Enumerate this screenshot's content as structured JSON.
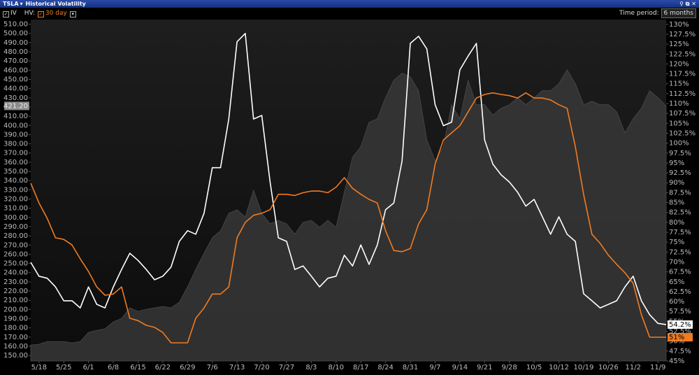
{
  "header": {
    "symbol": "TSLA",
    "title": "Historical Volatility"
  },
  "controls": {
    "hv_label": "HV:",
    "time_period_label": "Time period:",
    "time_period": "6 months"
  },
  "chart_data": {
    "type": "line",
    "categories": [
      null,
      "5/18",
      null,
      null,
      "5/25",
      null,
      null,
      "6/1",
      null,
      null,
      "6/8",
      null,
      null,
      "6/15",
      null,
      null,
      "6/22",
      null,
      null,
      "6/29",
      null,
      null,
      "7/6",
      null,
      null,
      "7/13",
      null,
      null,
      "7/20",
      null,
      null,
      "7/27",
      null,
      null,
      "8/3",
      null,
      null,
      "8/10",
      null,
      null,
      "8/17",
      null,
      null,
      "8/24",
      null,
      null,
      "8/31",
      null,
      null,
      "9/7",
      null,
      null,
      "9/14",
      null,
      null,
      "9/21",
      null,
      null,
      "9/28",
      null,
      null,
      "10/5",
      null,
      null,
      "10/12",
      null,
      null,
      "10/19",
      null,
      null,
      "10/26",
      null,
      null,
      "11/2",
      null,
      null,
      "11/9",
      null
    ],
    "ylim": [
      144,
      515
    ],
    "yticks": [
      {
        "value": 150,
        "label": "150.00"
      },
      {
        "value": 160,
        "label": "160.00"
      },
      {
        "value": 170,
        "label": "170.00"
      },
      {
        "value": 180,
        "label": "180.00"
      },
      {
        "value": 190,
        "label": "190.00"
      },
      {
        "value": 200,
        "label": "200.00"
      },
      {
        "value": 210,
        "label": "210.00"
      },
      {
        "value": 220,
        "label": "220.00"
      },
      {
        "value": 230,
        "label": "230.00"
      },
      {
        "value": 240,
        "label": "240.00"
      },
      {
        "value": 250,
        "label": "250.00"
      },
      {
        "value": 260,
        "label": "260.00"
      },
      {
        "value": 270,
        "label": "270.00"
      },
      {
        "value": 280,
        "label": "280.00"
      },
      {
        "value": 290,
        "label": "290.00"
      },
      {
        "value": 300,
        "label": "300.00"
      },
      {
        "value": 310,
        "label": "310.00"
      },
      {
        "value": 320,
        "label": "320.00"
      },
      {
        "value": 330,
        "label": "330.00"
      },
      {
        "value": 340,
        "label": "340.00"
      },
      {
        "value": 350,
        "label": "350.00"
      },
      {
        "value": 360,
        "label": "360.00"
      },
      {
        "value": 370,
        "label": "370.00"
      },
      {
        "value": 380,
        "label": "380.00"
      },
      {
        "value": 390,
        "label": "390.00"
      },
      {
        "value": 400,
        "label": "400.00"
      },
      {
        "value": 410,
        "label": "410.00"
      },
      {
        "value": 420,
        "label": "420.00"
      },
      {
        "value": 430,
        "label": "430.00"
      },
      {
        "value": 440,
        "label": "440.00"
      },
      {
        "value": 450,
        "label": "450.00"
      },
      {
        "value": 460,
        "label": "460.00"
      },
      {
        "value": 470,
        "label": "470.00"
      },
      {
        "value": 480,
        "label": "480.00"
      },
      {
        "value": 490,
        "label": "490.00"
      },
      {
        "value": 500,
        "label": "500.00"
      },
      {
        "value": 510,
        "label": "510.00"
      }
    ],
    "y2lim": [
      45,
      131.2
    ],
    "y2ticks": [
      {
        "value": 45,
        "label": "45%"
      },
      {
        "value": 47.5,
        "label": "47.5%"
      },
      {
        "value": 50,
        "label": "50%"
      },
      {
        "value": 52.5,
        "label": "52.5%"
      },
      {
        "value": 55,
        "label": "55%"
      },
      {
        "value": 57.5,
        "label": "57.5%"
      },
      {
        "value": 60,
        "label": "60%"
      },
      {
        "value": 62.5,
        "label": "62.5%"
      },
      {
        "value": 65,
        "label": "65%"
      },
      {
        "value": 67.5,
        "label": "67.5%"
      },
      {
        "value": 70,
        "label": "70%"
      },
      {
        "value": 72.5,
        "label": "72.5%"
      },
      {
        "value": 75,
        "label": "75%"
      },
      {
        "value": 77.5,
        "label": "77.5%"
      },
      {
        "value": 80,
        "label": "80%"
      },
      {
        "value": 82.5,
        "label": "82.5%"
      },
      {
        "value": 85,
        "label": "85%"
      },
      {
        "value": 87.5,
        "label": "87.5%"
      },
      {
        "value": 90,
        "label": "90%"
      },
      {
        "value": 92.5,
        "label": "92.5%"
      },
      {
        "value": 95,
        "label": "95%"
      },
      {
        "value": 97.5,
        "label": "97.5%"
      },
      {
        "value": 100,
        "label": "100%"
      },
      {
        "value": 102.5,
        "label": "102.5%"
      },
      {
        "value": 105,
        "label": "105%"
      },
      {
        "value": 107.5,
        "label": "107.5%"
      },
      {
        "value": 110,
        "label": "110%"
      },
      {
        "value": 112.5,
        "label": "112.5%"
      },
      {
        "value": 115,
        "label": "115%"
      },
      {
        "value": 117.5,
        "label": "117.5%"
      },
      {
        "value": 120,
        "label": "120%"
      },
      {
        "value": 122.5,
        "label": "122.5%"
      },
      {
        "value": 125,
        "label": "125%"
      },
      {
        "value": 127.5,
        "label": "127.5%"
      },
      {
        "value": 130,
        "label": "130%"
      }
    ],
    "series": [
      {
        "kind": "area",
        "color": "#3a3a3a",
        "label_color": "#8a8a8a",
        "last_label": "421.20",
        "values": [
          161.4,
          162.2,
          165.2,
          165.2,
          165.2,
          163.7,
          165.2,
          175.1,
          177.4,
          178.9,
          186.5,
          190.3,
          201.8,
          198.0,
          200.2,
          201.8,
          203.3,
          201.8,
          207.8,
          224.6,
          243.6,
          261.1,
          277.9,
          285.5,
          304.5,
          308.3,
          300.7,
          329.6,
          304.5,
          293.1,
          296.9,
          293.1,
          281.7,
          294.6,
          296.9,
          289.3,
          296.9,
          289.3,
          327.3,
          365.4,
          376.8,
          403.4,
          407.3,
          430.1,
          449.1,
          456.7,
          452.9,
          437.7,
          384.4,
          361.6,
          376.8,
          422.5,
          407.3,
          449.1,
          422.5,
          422.5,
          411.1,
          418.7,
          422.5,
          430.1,
          422.5,
          430.1,
          437.7,
          437.7,
          445.3,
          460.5,
          445.3,
          422.5,
          426.3,
          422.5,
          422.5,
          414.9,
          392.0,
          407.3,
          418.7,
          437.7,
          430.1,
          421.2
        ]
      },
      {
        "name": "IV",
        "color": "#ffffff",
        "axis": "y2",
        "label_color": "#ffffff",
        "last_label": "54.2%",
        "values": [
          69.9,
          66.4,
          65.9,
          63.7,
          60.2,
          60.2,
          58.4,
          63.7,
          59.3,
          58.4,
          63.7,
          68.1,
          72.2,
          70.4,
          68.1,
          65.5,
          66.4,
          68.7,
          75.2,
          77.9,
          77.0,
          82.3,
          93.8,
          93.8,
          106.1,
          125.6,
          127.7,
          106.1,
          107.0,
          90.2,
          76.1,
          75.2,
          68.1,
          69.0,
          66.4,
          63.7,
          65.9,
          66.4,
          71.7,
          69.0,
          74.3,
          69.4,
          74.3,
          83.2,
          84.9,
          95.5,
          125.2,
          127.0,
          123.8,
          109.7,
          104.4,
          105.3,
          118.5,
          122.0,
          125.2,
          100.8,
          94.7,
          92.0,
          90.2,
          87.6,
          84.1,
          85.8,
          81.4,
          77.0,
          81.4,
          77.0,
          75.2,
          62.0,
          60.2,
          58.4,
          59.3,
          60.2,
          63.7,
          66.4,
          60.2,
          56.7,
          54.5,
          54.2
        ]
      },
      {
        "name": "30 day",
        "color": "#f07b22",
        "axis": "y2",
        "label_color": "#f07b22",
        "last_label": "51%",
        "values": [
          89.9,
          84.9,
          81.0,
          76.1,
          75.7,
          74.3,
          70.8,
          67.6,
          63.7,
          61.6,
          61.9,
          63.7,
          55.8,
          55.2,
          54.0,
          53.5,
          52.2,
          49.6,
          49.6,
          49.6,
          55.8,
          58.4,
          61.9,
          61.9,
          63.7,
          76.1,
          80.0,
          81.8,
          82.3,
          83.2,
          87.1,
          87.1,
          86.8,
          87.5,
          87.9,
          87.9,
          87.5,
          88.9,
          91.3,
          88.6,
          87.1,
          85.8,
          84.9,
          77.9,
          72.9,
          72.6,
          73.4,
          79.6,
          83.2,
          94.7,
          100.8,
          102.6,
          104.4,
          107.9,
          111.4,
          112.3,
          112.7,
          112.3,
          112.0,
          111.4,
          112.7,
          111.4,
          111.4,
          110.9,
          109.7,
          108.8,
          99.1,
          87.1,
          77.0,
          74.7,
          71.7,
          69.4,
          67.3,
          64.6,
          56.7,
          51.0,
          51.0,
          51
        ]
      }
    ]
  }
}
